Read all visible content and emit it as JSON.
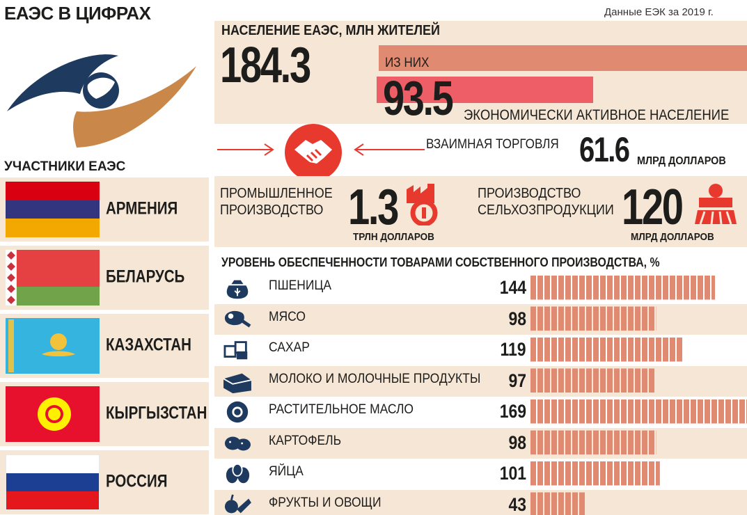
{
  "header": {
    "title": "ЕАЭС В ЦИФРАХ",
    "source": "Данные ЕЭК за 2019 г."
  },
  "members": {
    "heading": "УЧАСТНИКИ ЕАЭС",
    "countries": [
      "АРМЕНИЯ",
      "БЕЛАРУСЬ",
      "КАЗАХСТАН",
      "КЫРГЫЗСТАН",
      "РОССИЯ"
    ]
  },
  "population": {
    "title": "НАСЕЛЕНИЕ ЕАЭС, МЛН ЖИТЕЛЕЙ",
    "total": "184.3",
    "of_them": "ИЗ НИХ",
    "active": "93.5",
    "active_label": "ЭКОНОМИЧЕСКИ АКТИВНОЕ НАСЕЛЕНИЕ"
  },
  "trade": {
    "label": "ВЗАИМНАЯ ТОРГОВЛЯ",
    "value": "61.6",
    "unit": "МЛРД ДОЛЛАРОВ"
  },
  "industry": {
    "label_line1": "ПРОМЫШЛЕННОЕ",
    "label_line2": "ПРОИЗВОДСТВО",
    "value": "1.3",
    "unit": "ТРЛН ДОЛЛАРОВ"
  },
  "agriculture": {
    "label_line1": "ПРОИЗВОДСТВО",
    "label_line2": "СЕЛЬХОЗПРОДУКЦИИ",
    "value": "120",
    "unit": "МЛРД ДОЛЛАРОВ"
  },
  "colors": {
    "panel": "#f6e6d6",
    "bar": "#e08a72",
    "accent_red": "#ee5e66",
    "icon_red": "#e8392f",
    "icon_dark": "#1f3a5f"
  },
  "chart_data": {
    "type": "bar",
    "title": "УРОВЕНЬ ОБЕСПЕЧЕННОСТИ ТОВАРАМИ СОБСТВЕННОГО ПРОИЗВОДСТВА, %",
    "categories": [
      "ПШЕНИЦА",
      "МЯСО",
      "САХАР",
      "МОЛОКО И МОЛОЧНЫЕ ПРОДУКТЫ",
      "РАСТИТЕЛЬНОЕ МАСЛО",
      "КАРТОФЕЛЬ",
      "ЯЙЦА",
      "ФРУКТЫ И ОВОЩИ"
    ],
    "values": [
      144,
      98,
      119,
      97,
      169,
      98,
      101,
      43
    ],
    "icons": [
      "wheat-sack-icon",
      "meat-leg-icon",
      "sugar-cubes-icon",
      "milk-carton-icon",
      "sunflower-icon",
      "potato-icon",
      "eggs-icon",
      "fruits-vegetables-icon"
    ],
    "orientation": "horizontal"
  }
}
